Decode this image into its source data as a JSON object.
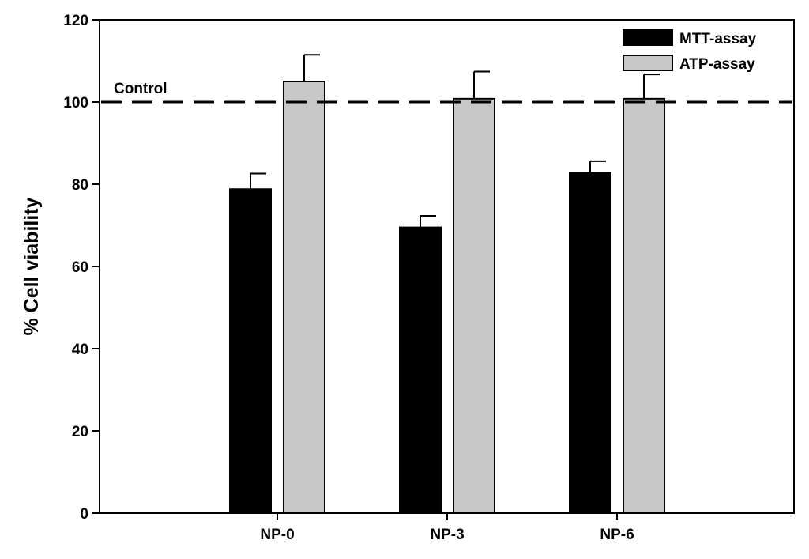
{
  "chart_data": {
    "type": "bar",
    "categories": [
      "NP-0",
      "NP-3",
      "NP-6"
    ],
    "series": [
      {
        "name": "MTT-assay",
        "values": [
          78.8,
          69.5,
          82.8
        ],
        "errors": [
          3.8,
          2.8,
          2.8
        ],
        "color": "#000000"
      },
      {
        "name": "ATP-assay",
        "values": [
          105.0,
          100.8,
          100.8
        ],
        "errors": [
          6.5,
          6.6,
          5.9
        ],
        "color": "#c8c8c8"
      }
    ],
    "title": "",
    "xlabel": "",
    "ylabel": "% Cell viability",
    "ylim": [
      0,
      120
    ],
    "yticks": [
      "0",
      "20",
      "40",
      "60",
      "80",
      "100",
      "120"
    ],
    "reference_line": {
      "value": 100,
      "label": "Control",
      "style": "dashed"
    },
    "grid": false,
    "legend_position": "top-right"
  }
}
